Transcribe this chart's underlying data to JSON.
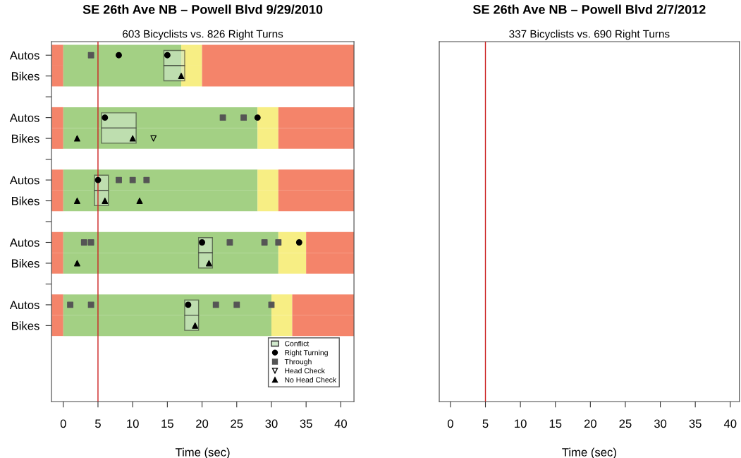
{
  "chart_data": [
    {
      "type": "bar",
      "orientation": "horizontal",
      "title": "SE 26th Ave NB – Powell Blvd 9/29/2010",
      "subtitle": "603 Bicyclists vs. 826 Right Turns",
      "xlabel": "Time (sec)",
      "categories": [
        "Autos",
        "Bikes",
        null,
        "Autos",
        "Bikes",
        null,
        "Autos",
        "Bikes",
        null,
        "Autos",
        "Bikes",
        null,
        "Autos",
        "Bikes",
        null,
        null,
        null
      ],
      "xlim": [
        -1.7,
        41.9
      ],
      "xticks": [
        0,
        5,
        10,
        15,
        20,
        25,
        30,
        35,
        40
      ],
      "series": [
        {
          "color": "#f4846a",
          "base": [
            -1.7,
            -1.7,
            null,
            -1.7,
            -1.7,
            null,
            -1.7,
            -1.7,
            null,
            -1.7,
            -1.7,
            null,
            -1.7,
            -1.7,
            null,
            null,
            null
          ],
          "values": [
            1.7,
            1.7,
            null,
            1.7,
            1.7,
            null,
            1.7,
            1.7,
            null,
            1.7,
            1.7,
            null,
            1.7,
            1.7,
            null,
            null,
            null
          ]
        },
        {
          "color": "#a3d084",
          "base": [
            0,
            0,
            null,
            0,
            0,
            null,
            0,
            0,
            null,
            0,
            0,
            null,
            0,
            0,
            null,
            null,
            null
          ],
          "values": [
            17,
            17,
            null,
            28,
            28,
            null,
            28,
            28,
            null,
            31,
            31,
            null,
            30,
            30,
            null,
            null,
            null
          ]
        },
        {
          "color": "#f7ee84",
          "base": [
            17,
            17,
            null,
            28,
            28,
            null,
            28,
            28,
            null,
            31,
            31,
            null,
            30,
            30,
            null,
            null,
            null
          ],
          "values": [
            3,
            3,
            null,
            3,
            3,
            null,
            3,
            3,
            null,
            4,
            4,
            null,
            3,
            3,
            null,
            null,
            null
          ]
        },
        {
          "color": "#f4846a",
          "base": [
            20,
            20,
            null,
            31,
            31,
            null,
            31,
            31,
            null,
            35,
            35,
            null,
            33,
            33,
            null,
            null,
            null
          ],
          "values": [
            21.9,
            21.9,
            null,
            10.9,
            10.9,
            null,
            10.9,
            10.9,
            null,
            6.9,
            6.9,
            null,
            8.9,
            8.9,
            null,
            null,
            null
          ]
        },
        {
          "name": "Conflict",
          "color": "#d0e8cc",
          "base": [
            14.5,
            14.5,
            null,
            5.5,
            5.5,
            null,
            4.5,
            4.5,
            null,
            19.5,
            19.5,
            null,
            17.5,
            17.5,
            null,
            null,
            null
          ],
          "values": [
            3,
            3,
            null,
            5,
            5,
            null,
            2,
            2,
            null,
            2,
            2,
            null,
            2,
            2,
            null,
            null,
            null
          ]
        },
        {
          "name": "Right Turning",
          "type": "scatter",
          "marker": "circle",
          "color": "#000000",
          "values": [
            8,
            null,
            null,
            6,
            null,
            null,
            5,
            null,
            null,
            20,
            null,
            null,
            18,
            null,
            null,
            null,
            null
          ]
        },
        {
          "type": "scatter",
          "marker": "circle",
          "color": "#000000",
          "values": [
            15,
            null,
            null,
            28,
            null,
            null,
            null,
            null,
            null,
            34,
            null,
            null,
            null,
            null,
            null,
            null,
            null
          ]
        },
        {
          "name": "Through",
          "type": "scatter",
          "marker": "square",
          "color": "#555555",
          "values": [
            4,
            null,
            null,
            23,
            null,
            null,
            8,
            null,
            null,
            3,
            null,
            null,
            1,
            null,
            null,
            null,
            null
          ]
        },
        {
          "type": "scatter",
          "marker": "square",
          "color": "#555555",
          "values": [
            null,
            null,
            null,
            26,
            null,
            null,
            10,
            null,
            null,
            4,
            null,
            null,
            4,
            null,
            null,
            null,
            null
          ]
        },
        {
          "type": "scatter",
          "marker": "square",
          "color": "#555555",
          "values": [
            null,
            null,
            null,
            null,
            null,
            null,
            12,
            null,
            null,
            24,
            null,
            null,
            22,
            null,
            null,
            null,
            null
          ]
        },
        {
          "type": "scatter",
          "marker": "square",
          "color": "#555555",
          "values": [
            null,
            null,
            null,
            null,
            null,
            null,
            null,
            null,
            null,
            29,
            null,
            null,
            25,
            null,
            null,
            null,
            null
          ]
        },
        {
          "type": "scatter",
          "marker": "square",
          "color": "#555555",
          "values": [
            null,
            null,
            null,
            null,
            null,
            null,
            null,
            null,
            null,
            31,
            null,
            null,
            30,
            null,
            null,
            null,
            null
          ]
        },
        {
          "name": "Head Check",
          "type": "scatter",
          "marker": "triangle_down",
          "color": "#000000",
          "values": [
            null,
            null,
            null,
            null,
            13,
            null,
            null,
            null,
            null,
            null,
            null,
            null,
            null,
            null,
            null,
            null,
            null
          ]
        },
        {
          "name": "No Head Check",
          "type": "scatter",
          "marker": "triangle",
          "color": "#000000",
          "values": [
            null,
            17,
            null,
            null,
            2,
            null,
            null,
            2,
            null,
            null,
            2,
            null,
            null,
            19,
            null,
            null,
            null
          ]
        },
        {
          "type": "scatter",
          "marker": "triangle",
          "color": "#000000",
          "values": [
            null,
            null,
            null,
            null,
            10,
            null,
            null,
            6,
            null,
            null,
            21,
            null,
            null,
            null,
            null,
            null,
            null
          ]
        },
        {
          "type": "scatter",
          "marker": "triangle",
          "color": "#000000",
          "values": [
            null,
            null,
            null,
            null,
            null,
            null,
            null,
            11,
            null,
            null,
            null,
            null,
            null,
            null,
            null,
            null,
            null
          ]
        }
      ],
      "ref_lines": [
        {
          "axis": "x",
          "value": 5,
          "color": "#cc2222"
        }
      ],
      "legend": "bottom right"
    },
    {
      "type": "bar",
      "orientation": "horizontal",
      "categories": [
        null,
        null,
        null,
        null,
        null,
        null,
        null,
        null,
        null,
        null,
        null,
        null,
        null,
        null,
        null,
        null,
        null
      ],
      "title": "SE 26th Ave NB – Powell Blvd 2/7/2012",
      "subtitle": "337 Bicyclists vs. 690 Right Turns",
      "xlabel": "Time (sec)",
      "xlim": [
        -1.6,
        41.3
      ],
      "xticks": [
        0,
        5,
        10,
        15,
        20,
        25,
        30,
        35,
        40
      ],
      "ref_lines": [
        {
          "axis": "x",
          "value": 5,
          "color": "#cc2222"
        }
      ]
    }
  ]
}
